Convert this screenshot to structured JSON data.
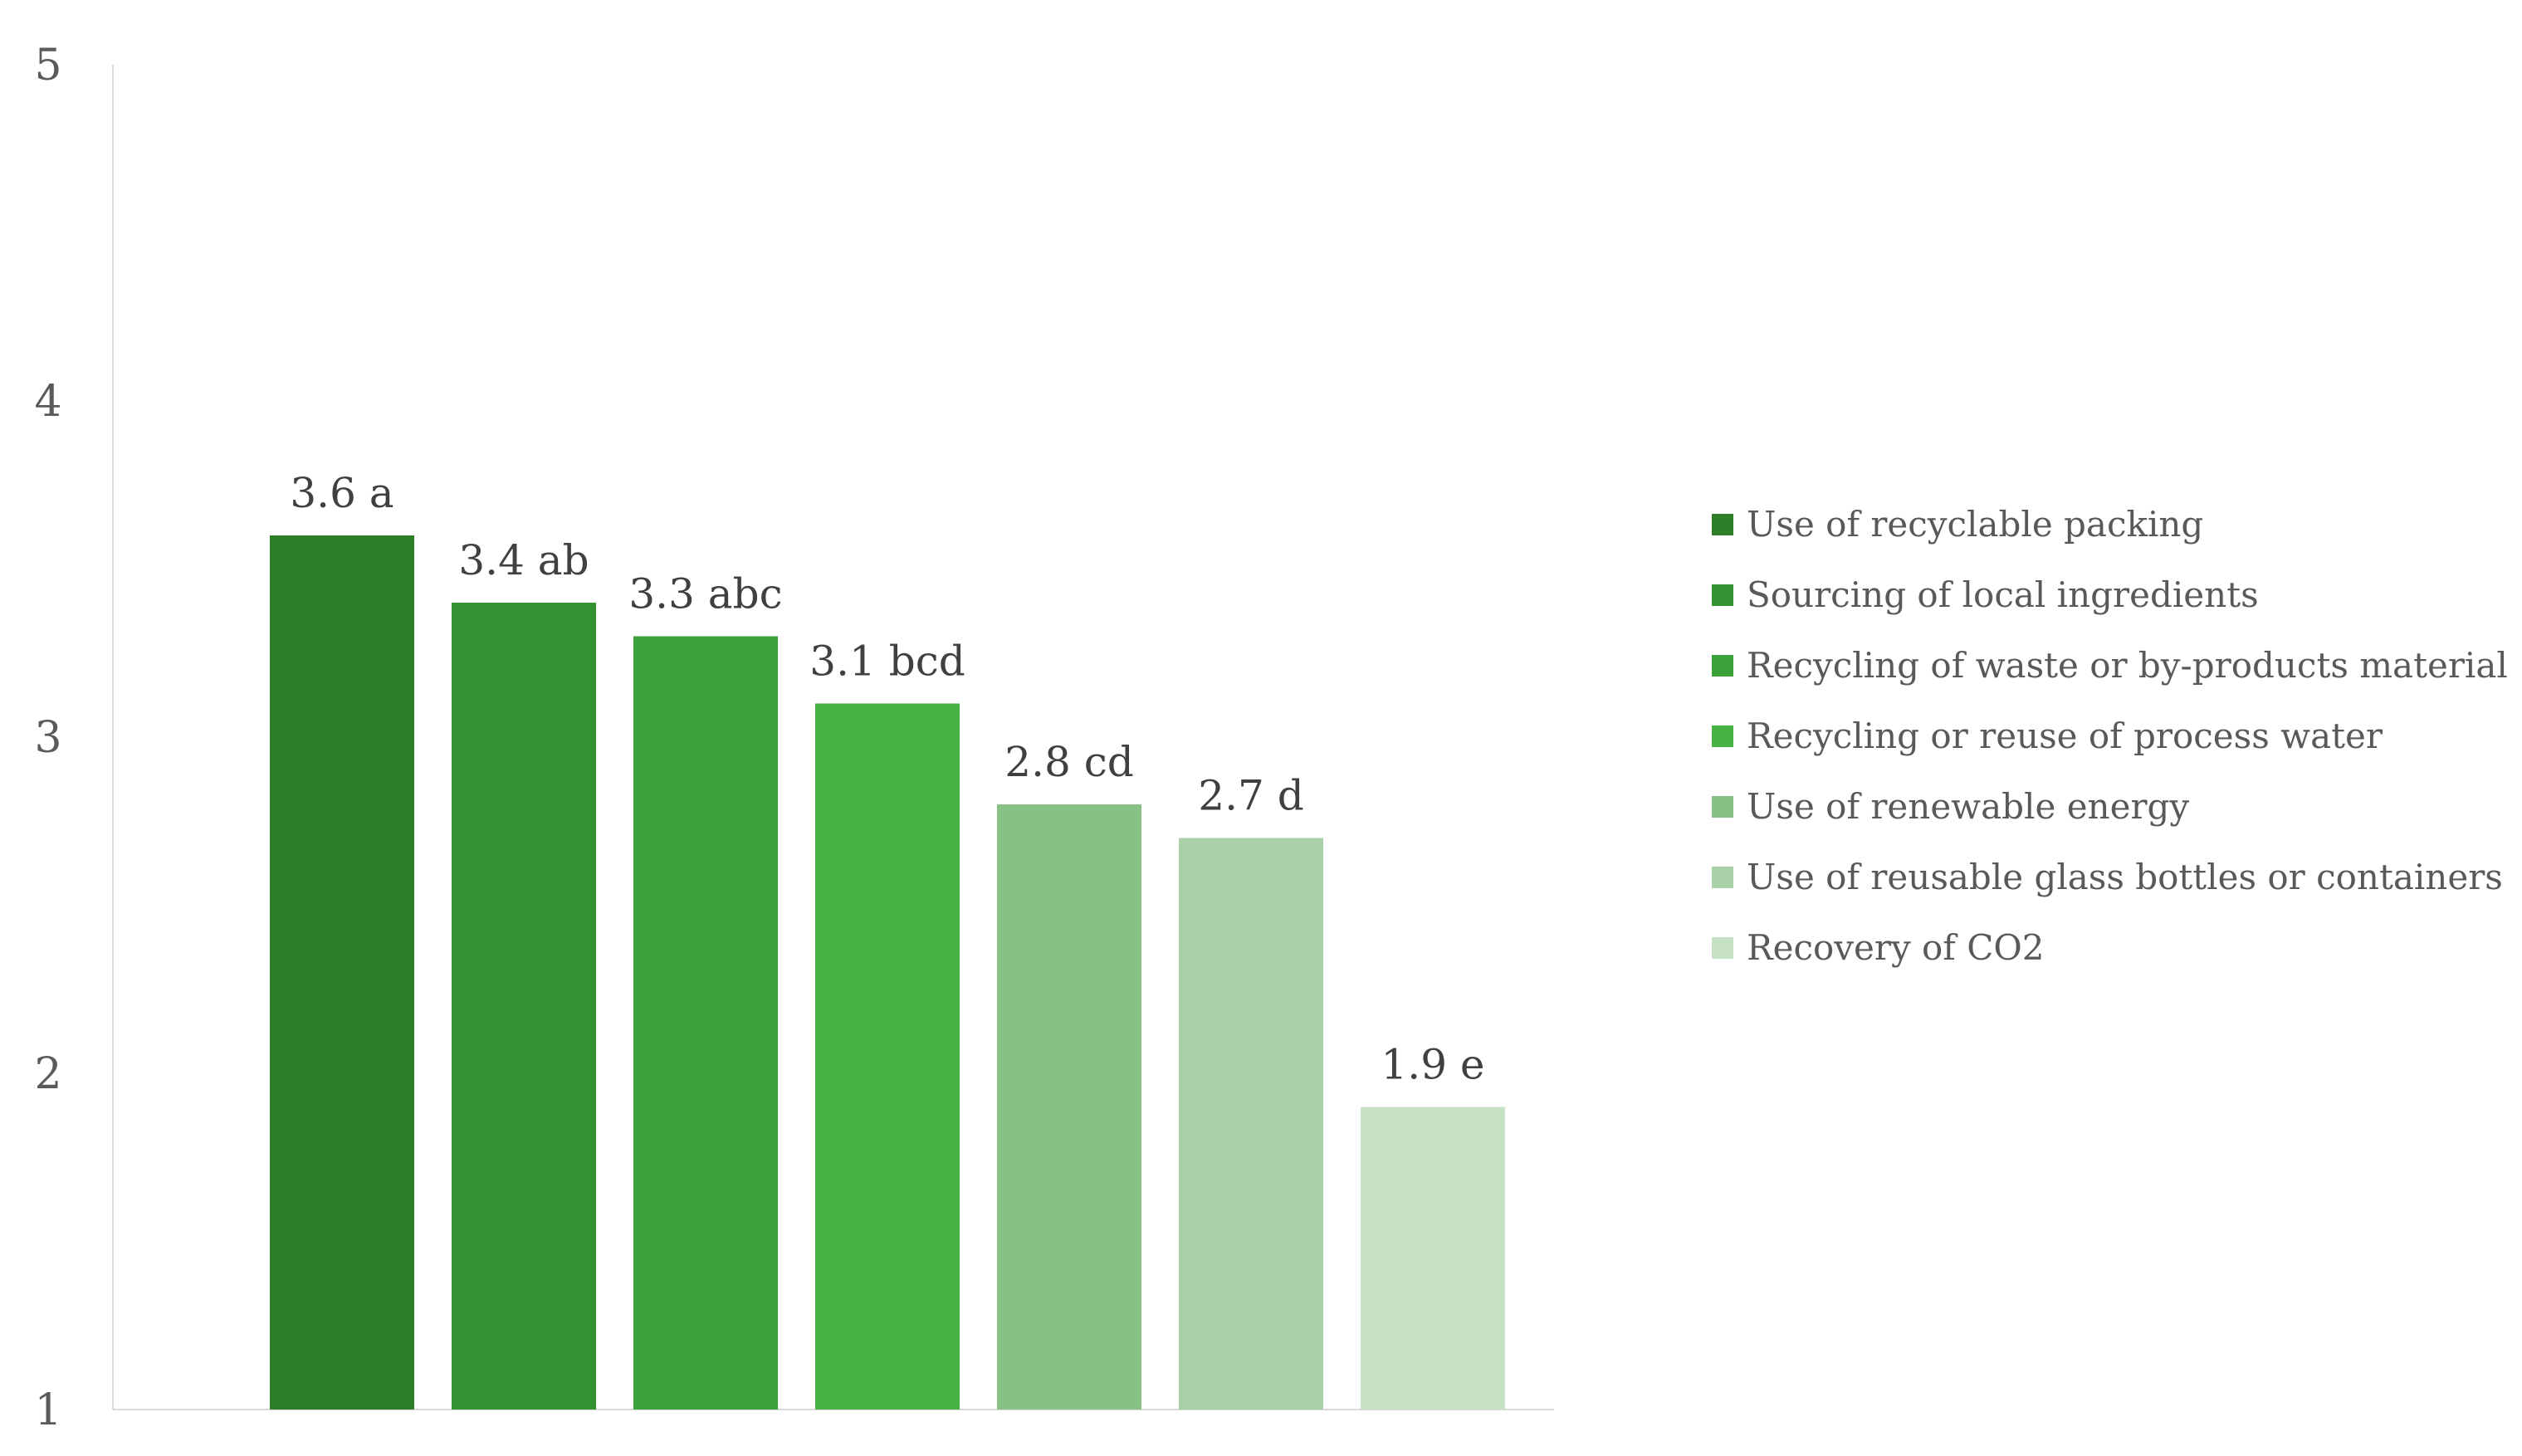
{
  "chart_data": {
    "type": "bar",
    "title": "",
    "xlabel": "",
    "ylabel": "",
    "ylim": [
      1,
      5
    ],
    "yticks": [
      1,
      2,
      3,
      4,
      5
    ],
    "grid": false,
    "legend_position": "right",
    "categories": [
      "Use of recyclable packing",
      "Sourcing of local ingredients",
      "Recycling of waste or by-products material",
      "Recycling or reuse of process water",
      "Use of renewable energy",
      "Use of reusable glass bottles or containers",
      "Recovery of CO2"
    ],
    "values": [
      3.6,
      3.4,
      3.3,
      3.1,
      2.8,
      2.7,
      1.9
    ],
    "data_labels": [
      "3.6 a",
      "3.4 ab",
      "3.3 abc",
      "3.1 bcd",
      "2.8 cd",
      "2.7 d",
      "1.9 e"
    ],
    "colors": [
      "#2e7d27",
      "#339131",
      "#3ba23a",
      "#45b242",
      "#88c184",
      "#a9d0a7",
      "#c7e1c5"
    ]
  }
}
